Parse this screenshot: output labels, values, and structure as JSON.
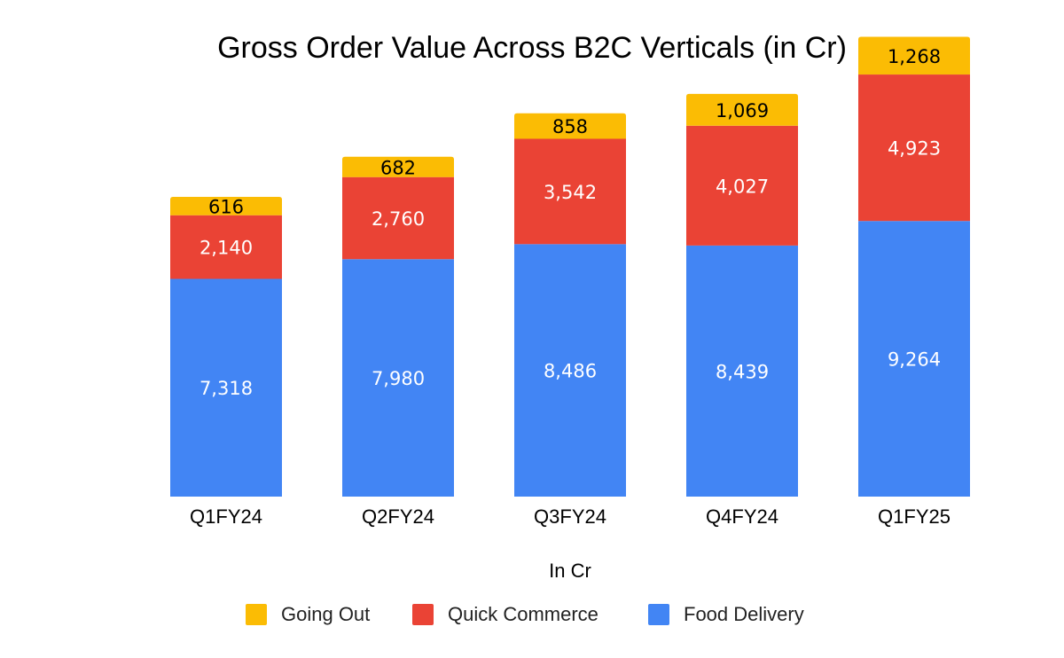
{
  "chart_data": {
    "type": "bar",
    "stacked": true,
    "title": "Gross Order Value Across B2C Verticals (in Cr)",
    "xlabel": "In Cr",
    "ylabel": "",
    "categories": [
      "Q1FY24",
      "Q2FY24",
      "Q3FY24",
      "Q4FY24",
      "Q1FY25"
    ],
    "series": [
      {
        "name": "Food Delivery",
        "color": "#4285F4",
        "label_color": "#ffffff",
        "values": [
          7318,
          7980,
          8486,
          8439,
          9264
        ]
      },
      {
        "name": "Quick Commerce",
        "color": "#EA4335",
        "label_color": "#ffffff",
        "values": [
          2140,
          2760,
          3542,
          4027,
          4923
        ]
      },
      {
        "name": "Going Out",
        "color": "#FBBC04",
        "label_color": "#000000",
        "values": [
          616,
          682,
          858,
          1069,
          1268
        ]
      }
    ],
    "data_labels": [
      [
        "7,318",
        "7,980",
        "8,486",
        "8,439",
        "9,264"
      ],
      [
        "2,140",
        "2,760",
        "3,542",
        "4,027",
        "4,923"
      ],
      [
        "616",
        "682",
        "858",
        "1,069",
        "1,268"
      ]
    ],
    "legend_order": [
      "Going Out",
      "Quick Commerce",
      "Food Delivery"
    ],
    "ylim": [
      0,
      15500
    ],
    "grid": false,
    "legend_position": "bottom"
  }
}
